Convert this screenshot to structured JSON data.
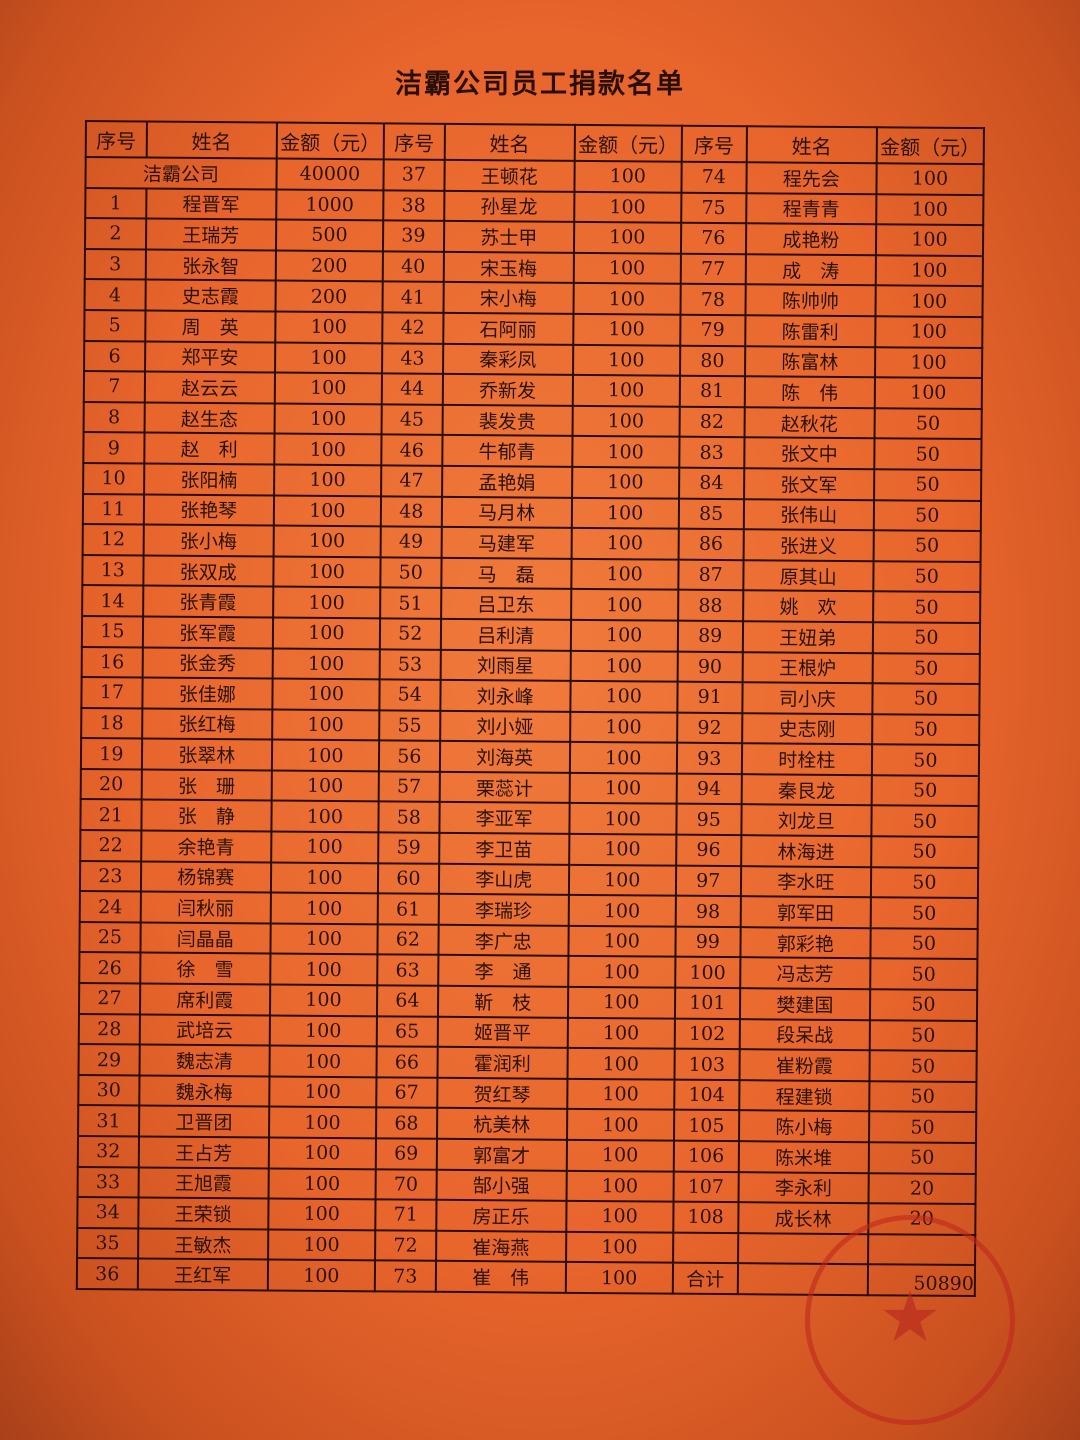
{
  "title": "洁霸公司员工捐款名单",
  "headers": {
    "no": "序号",
    "name": "姓名",
    "amount": "金额（元）"
  },
  "company_row": {
    "name": "洁霸公司",
    "amount": "40000"
  },
  "group1": [
    [
      "1",
      "程晋军",
      "1000"
    ],
    [
      "2",
      "王瑞芳",
      "500"
    ],
    [
      "3",
      "张永智",
      "200"
    ],
    [
      "4",
      "史志霞",
      "200"
    ],
    [
      "5",
      "周　英",
      "100"
    ],
    [
      "6",
      "郑平安",
      "100"
    ],
    [
      "7",
      "赵云云",
      "100"
    ],
    [
      "8",
      "赵生态",
      "100"
    ],
    [
      "9",
      "赵　利",
      "100"
    ],
    [
      "10",
      "张阳楠",
      "100"
    ],
    [
      "11",
      "张艳琴",
      "100"
    ],
    [
      "12",
      "张小梅",
      "100"
    ],
    [
      "13",
      "张双成",
      "100"
    ],
    [
      "14",
      "张青霞",
      "100"
    ],
    [
      "15",
      "张军霞",
      "100"
    ],
    [
      "16",
      "张金秀",
      "100"
    ],
    [
      "17",
      "张佳娜",
      "100"
    ],
    [
      "18",
      "张红梅",
      "100"
    ],
    [
      "19",
      "张翠林",
      "100"
    ],
    [
      "20",
      "张　珊",
      "100"
    ],
    [
      "21",
      "张　静",
      "100"
    ],
    [
      "22",
      "余艳青",
      "100"
    ],
    [
      "23",
      "杨锦赛",
      "100"
    ],
    [
      "24",
      "闫秋丽",
      "100"
    ],
    [
      "25",
      "闫晶晶",
      "100"
    ],
    [
      "26",
      "徐　雪",
      "100"
    ],
    [
      "27",
      "席利霞",
      "100"
    ],
    [
      "28",
      "武培云",
      "100"
    ],
    [
      "29",
      "魏志清",
      "100"
    ],
    [
      "30",
      "魏永梅",
      "100"
    ],
    [
      "31",
      "卫晋团",
      "100"
    ],
    [
      "32",
      "王占芳",
      "100"
    ],
    [
      "33",
      "王旭霞",
      "100"
    ],
    [
      "34",
      "王荣锁",
      "100"
    ],
    [
      "35",
      "王敏杰",
      "100"
    ],
    [
      "36",
      "王红军",
      "100"
    ]
  ],
  "group2": [
    [
      "37",
      "王顿花",
      "100"
    ],
    [
      "38",
      "孙星龙",
      "100"
    ],
    [
      "39",
      "苏士甲",
      "100"
    ],
    [
      "40",
      "宋玉梅",
      "100"
    ],
    [
      "41",
      "宋小梅",
      "100"
    ],
    [
      "42",
      "石阿丽",
      "100"
    ],
    [
      "43",
      "秦彩凤",
      "100"
    ],
    [
      "44",
      "乔新发",
      "100"
    ],
    [
      "45",
      "裴发贵",
      "100"
    ],
    [
      "46",
      "牛郁青",
      "100"
    ],
    [
      "47",
      "孟艳娟",
      "100"
    ],
    [
      "48",
      "马月林",
      "100"
    ],
    [
      "49",
      "马建军",
      "100"
    ],
    [
      "50",
      "马　磊",
      "100"
    ],
    [
      "51",
      "吕卫东",
      "100"
    ],
    [
      "52",
      "吕利清",
      "100"
    ],
    [
      "53",
      "刘雨星",
      "100"
    ],
    [
      "54",
      "刘永峰",
      "100"
    ],
    [
      "55",
      "刘小娅",
      "100"
    ],
    [
      "56",
      "刘海英",
      "100"
    ],
    [
      "57",
      "栗蕊计",
      "100"
    ],
    [
      "58",
      "李亚军",
      "100"
    ],
    [
      "59",
      "李卫苗",
      "100"
    ],
    [
      "60",
      "李山虎",
      "100"
    ],
    [
      "61",
      "李瑞珍",
      "100"
    ],
    [
      "62",
      "李广忠",
      "100"
    ],
    [
      "63",
      "李　通",
      "100"
    ],
    [
      "64",
      "靳　枝",
      "100"
    ],
    [
      "65",
      "姬晋平",
      "100"
    ],
    [
      "66",
      "霍润利",
      "100"
    ],
    [
      "67",
      "贺红琴",
      "100"
    ],
    [
      "68",
      "杭美林",
      "100"
    ],
    [
      "69",
      "郭富才",
      "100"
    ],
    [
      "70",
      "郜小强",
      "100"
    ],
    [
      "71",
      "房正乐",
      "100"
    ],
    [
      "72",
      "崔海燕",
      "100"
    ],
    [
      "73",
      "崔　伟",
      "100"
    ]
  ],
  "group3": [
    [
      "74",
      "程先会",
      "100"
    ],
    [
      "75",
      "程青青",
      "100"
    ],
    [
      "76",
      "成艳粉",
      "100"
    ],
    [
      "77",
      "成　涛",
      "100"
    ],
    [
      "78",
      "陈帅帅",
      "100"
    ],
    [
      "79",
      "陈雷利",
      "100"
    ],
    [
      "80",
      "陈富林",
      "100"
    ],
    [
      "81",
      "陈　伟",
      "100"
    ],
    [
      "82",
      "赵秋花",
      "50"
    ],
    [
      "83",
      "张文中",
      "50"
    ],
    [
      "84",
      "张文军",
      "50"
    ],
    [
      "85",
      "张伟山",
      "50"
    ],
    [
      "86",
      "张进义",
      "50"
    ],
    [
      "87",
      "原其山",
      "50"
    ],
    [
      "88",
      "姚　欢",
      "50"
    ],
    [
      "89",
      "王妞弟",
      "50"
    ],
    [
      "90",
      "王根炉",
      "50"
    ],
    [
      "91",
      "司小庆",
      "50"
    ],
    [
      "92",
      "史志刚",
      "50"
    ],
    [
      "93",
      "时栓柱",
      "50"
    ],
    [
      "94",
      "秦艮龙",
      "50"
    ],
    [
      "95",
      "刘龙旦",
      "50"
    ],
    [
      "96",
      "林海进",
      "50"
    ],
    [
      "97",
      "李水旺",
      "50"
    ],
    [
      "98",
      "郭军田",
      "50"
    ],
    [
      "99",
      "郭彩艳",
      "50"
    ],
    [
      "100",
      "冯志芳",
      "50"
    ],
    [
      "101",
      "樊建国",
      "50"
    ],
    [
      "102",
      "段呆战",
      "50"
    ],
    [
      "103",
      "崔粉霞",
      "50"
    ],
    [
      "104",
      "程建锁",
      "50"
    ],
    [
      "105",
      "陈小梅",
      "50"
    ],
    [
      "106",
      "陈米堆",
      "50"
    ],
    [
      "107",
      "李永利",
      "20"
    ],
    [
      "108",
      "成长林",
      "20"
    ]
  ],
  "total": {
    "label": "合计",
    "amount": "50890"
  },
  "stamp_color": "#be281e",
  "paper_color": "#e8652c"
}
